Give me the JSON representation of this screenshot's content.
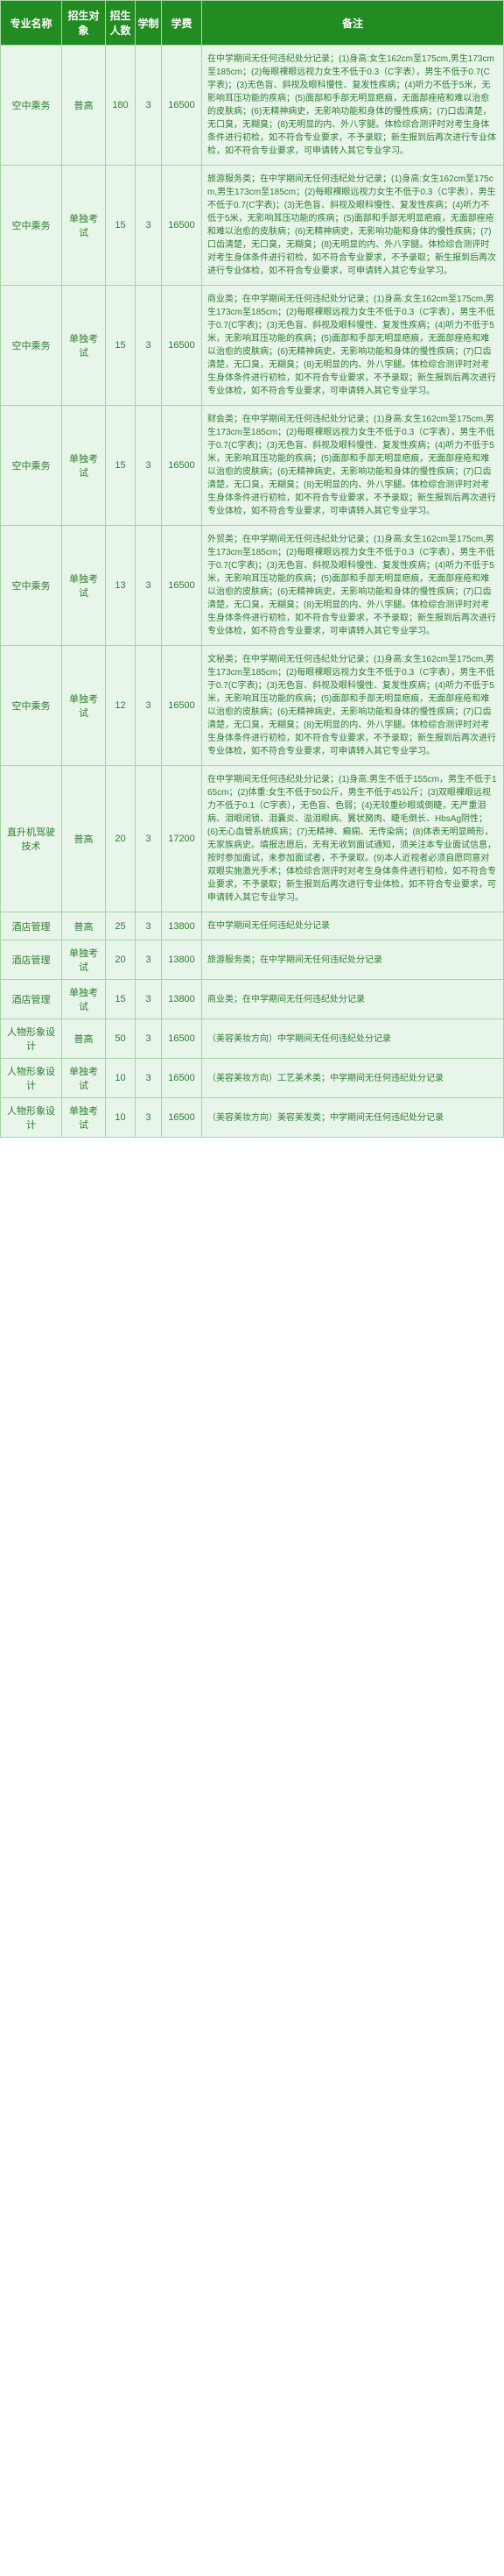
{
  "columns": [
    "专业名称",
    "招生对象",
    "招生人数",
    "学制",
    "学费",
    "备注"
  ],
  "rows": [
    {
      "major": "空中乘务",
      "target": "普高",
      "count": "180",
      "years": "3",
      "fee": "16500",
      "remark": "在中学期间无任何违纪处分记录；(1)身高:女生162cm至175cm,男生173cm至185cm；(2)每眼裸眼远视力女生不低于0.3（C字表），男生不低于0.7(C字表)；(3)无色盲、斜视及眼科慢性、复发性疾病；(4)听力不低于5米，无影响耳压功能的疾病；(5)面部和手部无明显疤痕，无面部痤疮和难以治愈的皮肤病；(6)无精神病史，无影响功能和身体的慢性疾病；(7)口齿清楚，无口臭，无糊臭；(8)无明显的内、外八字腿。体检综合测评时对考生身体条件进行初检，如不符合专业要求，不予录取；新生报到后再次进行专业体检，如不符合专业要求，可申请转入其它专业学习。"
    },
    {
      "major": "空中乘务",
      "target": "单独考试",
      "count": "15",
      "years": "3",
      "fee": "16500",
      "remark": "旅游服务类；在中学期间无任何违纪处分记录；(1)身高:女生162cm至175cm,男生173cm至185cm；(2)每眼裸眼远视力女生不低于0.3（C字表），男生不低于0.7(C字表)；(3)无色盲、斜视及眼科慢性、复发性疾病；(4)听力不低于5米，无影响耳压功能的疾病；(5)面部和手部无明显疤痕，无面部痤疮和难以治愈的皮肤病；(6)无精神病史，无影响功能和身体的慢性疾病；(7)口齿清楚，无口臭，无糊臭；(8)无明显的内、外八字腿。体检综合测评时对考生身体条件进行初检，如不符合专业要求，不予录取；新生报到后再次进行专业体检，如不符合专业要求，可申请转入其它专业学习。"
    },
    {
      "major": "空中乘务",
      "target": "单独考试",
      "count": "15",
      "years": "3",
      "fee": "16500",
      "remark": "商业类；在中学期间无任何违纪处分记录；(1)身高:女生162cm至175cm,男生173cm至185cm；(2)每眼裸眼远视力女生不低于0.3（C字表），男生不低于0.7(C字表)；(3)无色盲、斜视及眼科慢性、复发性疾病；(4)听力不低于5米，无影响耳压功能的疾病；(5)面部和手部无明显疤痕，无面部痤疮和难以治愈的皮肤病；(6)无精神病史，无影响功能和身体的慢性疾病；(7)口齿清楚，无口臭，无糊臭；(8)无明显的内、外八字腿。体检综合测评时对考生身体条件进行初检，如不符合专业要求，不予录取；新生报到后再次进行专业体检，如不符合专业要求，可申请转入其它专业学习。"
    },
    {
      "major": "空中乘务",
      "target": "单独考试",
      "count": "15",
      "years": "3",
      "fee": "16500",
      "remark": "财会类；在中学期间无任何违纪处分记录；(1)身高:女生162cm至175cm,男生173cm至185cm；(2)每眼裸眼远视力女生不低于0.3（C字表），男生不低于0.7(C字表)；(3)无色盲、斜视及眼科慢性、复发性疾病；(4)听力不低于5米，无影响耳压功能的疾病；(5)面部和手部无明显疤痕，无面部痤疮和难以治愈的皮肤病；(6)无精神病史，无影响功能和身体的慢性疾病；(7)口齿清楚，无口臭，无糊臭；(8)无明显的内、外八字腿。体检综合测评时对考生身体条件进行初检，如不符合专业要求，不予录取；新生报到后再次进行专业体检，如不符合专业要求，可申请转入其它专业学习。"
    },
    {
      "major": "空中乘务",
      "target": "单独考试",
      "count": "13",
      "years": "3",
      "fee": "16500",
      "remark": "外贸类；在中学期间无任何违纪处分记录；(1)身高:女生162cm至175cm,男生173cm至185cm；(2)每眼裸眼远视力女生不低于0.3（C字表），男生不低于0.7(C字表)；(3)无色盲、斜视及眼科慢性、复发性疾病；(4)听力不低于5米，无影响耳压功能的疾病；(5)面部和手部无明显疤痕，无面部痤疮和难以治愈的皮肤病；(6)无精神病史，无影响功能和身体的慢性疾病；(7)口齿清楚，无口臭，无糊臭；(8)无明显的内、外八字腿。体检综合测评时对考生身体条件进行初检，如不符合专业要求，不予录取；新生报到后再次进行专业体检，如不符合专业要求，可申请转入其它专业学习。"
    },
    {
      "major": "空中乘务",
      "target": "单独考试",
      "count": "12",
      "years": "3",
      "fee": "16500",
      "remark": "文秘类；在中学期间无任何违纪处分记录；(1)身高:女生162cm至175cm,男生173cm至185cm；(2)每眼裸眼远视力女生不低于0.3（C字表），男生不低于0.7(C字表)；(3)无色盲、斜视及眼科慢性、复发性疾病；(4)听力不低于5米，无影响耳压功能的疾病；(5)面部和手部无明显疤痕，无面部痤疮和难以治愈的皮肤病；(6)无精神病史，无影响功能和身体的慢性疾病；(7)口齿清楚，无口臭，无糊臭；(8)无明显的内、外八字腿。体检综合测评时对考生身体条件进行初检，如不符合专业要求，不予录取；新生报到后再次进行专业体检，如不符合专业要求，可申请转入其它专业学习。"
    },
    {
      "major": "直升机驾驶技术",
      "target": "普高",
      "count": "20",
      "years": "3",
      "fee": "17200",
      "remark": "在中学期间无任何违纪处分记录；(1)身高:男生不低于155cm，男生不低于165cm；(2)体重:女生不低于50公斤，男生不低于45公斤；(3)双眼裸眼远视力不低于0.1（C字表），无色盲、色弱；(4)无较重砂眼或倒睫，无严重泪病、泪眼闭锁、泪囊炎、溢泪眼病、翼状胬肉、睫毛倒长、HbsAg阴性；(6)无心血管系统疾病；(7)无精神、癫痫、无传染病；(8)体表无明显畸形，无家族病史。填报志愿后，无有无收到面试通知，须关注本专业面试信息，按时参加面试，未参加面试者，不予录取。(9)本人近视者必须自愿同意对双眼实施激光手术；体检综合测评时对考生身体条件进行初检，如不符合专业要求，不予录取；新生报到后再次进行专业体检，如不符合专业要求，可申请转入其它专业学习。"
    },
    {
      "major": "酒店管理",
      "target": "普高",
      "count": "25",
      "years": "3",
      "fee": "13800",
      "remark": "在中学期间无任何违纪处分记录"
    },
    {
      "major": "酒店管理",
      "target": "单独考试",
      "count": "20",
      "years": "3",
      "fee": "13800",
      "remark": "旅游服务类；在中学期间无任何违纪处分记录"
    },
    {
      "major": "酒店管理",
      "target": "单独考试",
      "count": "15",
      "years": "3",
      "fee": "13800",
      "remark": "商业类；在中学期间无任何违纪处分记录"
    },
    {
      "major": "人物形象设计",
      "target": "普高",
      "count": "50",
      "years": "3",
      "fee": "16500",
      "remark": "（美容美妆方向）中学期间无任何违纪处分记录"
    },
    {
      "major": "人物形象设计",
      "target": "单独考试",
      "count": "10",
      "years": "3",
      "fee": "16500",
      "remark": "（美容美妆方向）工艺美术类；中学期间无任何违纪处分记录"
    },
    {
      "major": "人物形象设计",
      "target": "单独考试",
      "count": "10",
      "years": "3",
      "fee": "16500",
      "remark": "（美容美妆方向）美容美发类；中学期间无任何违纪处分记录"
    }
  ]
}
